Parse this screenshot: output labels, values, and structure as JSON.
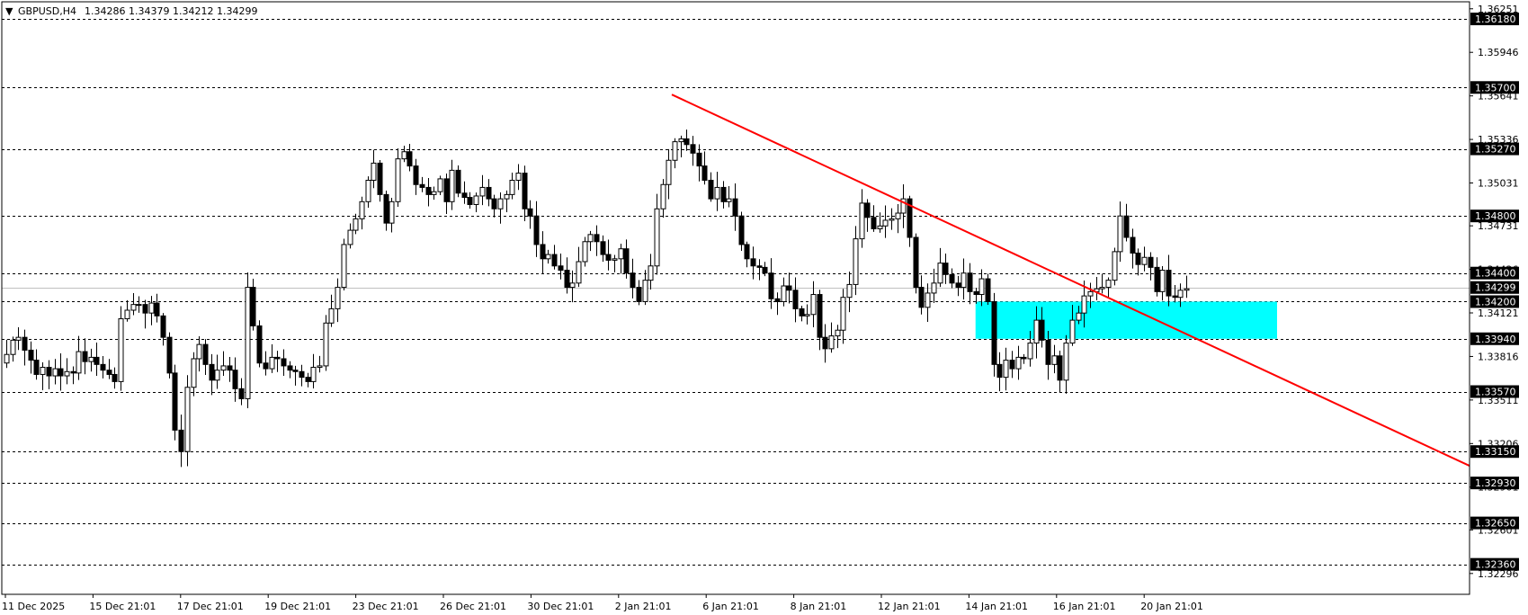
{
  "header": {
    "arrow": "▼",
    "symbol": "GBPUSD,H4",
    "ohlc": "1.34286 1.34379 1.34212 1.34299"
  },
  "colors": {
    "background": "#ffffff",
    "bull_candle_fill": "#ffffff",
    "bear_candle_fill": "#000000",
    "candle_outline": "#000000",
    "trendline": "#ff0000",
    "zone": "#00ffff",
    "level_line": "#000000",
    "current_price_line": "#c0c0c0"
  },
  "chart_data": {
    "type": "candlestick",
    "symbol": "GBPUSD",
    "timeframe": "H4",
    "ylim": [
      1.3215,
      1.363
    ],
    "price_axis_ticks": [
      "1.36251",
      "1.35946",
      "1.35641",
      "1.35336",
      "1.35031",
      "1.34731",
      "1.34426",
      "1.34121",
      "1.33816",
      "1.33511",
      "1.33206",
      "1.32901",
      "1.32601",
      "1.32296"
    ],
    "time_axis_labels": [
      "11 Dec 2025",
      "15 Dec 21:01",
      "17 Dec 21:01",
      "19 Dec 21:01",
      "23 Dec 21:01",
      "26 Dec 21:01",
      "30 Dec 21:01",
      "2 Jan 21:01",
      "6 Jan 21:01",
      "8 Jan 21:01",
      "12 Jan 21:01",
      "14 Jan 21:01",
      "16 Jan 21:01",
      "20 Jan 21:01"
    ],
    "levels": [
      "1.36180",
      "1.35700",
      "1.35270",
      "1.34800",
      "1.34400",
      "1.34200",
      "1.33940",
      "1.33570",
      "1.33150",
      "1.32930",
      "1.32650",
      "1.32360"
    ],
    "current_price": "1.34299",
    "trendline": {
      "from": 1.3565,
      "to": 1.3305
    },
    "zone": {
      "top": 1.342,
      "bottom": 1.3394
    },
    "closes": [
      1.3383,
      1.3393,
      1.3395,
      1.3386,
      1.3379,
      1.3369,
      1.3374,
      1.3368,
      1.3373,
      1.3368,
      1.3371,
      1.337,
      1.3385,
      1.3378,
      1.3381,
      1.3376,
      1.3372,
      1.3369,
      1.3364,
      1.3408,
      1.3414,
      1.3418,
      1.3418,
      1.3412,
      1.3419,
      1.341,
      1.3395,
      1.337,
      1.333,
      1.3315,
      1.336,
      1.338,
      1.339,
      1.3376,
      1.3365,
      1.3372,
      1.3375,
      1.3372,
      1.3359,
      1.3352,
      1.343,
      1.3403,
      1.3377,
      1.3373,
      1.3381,
      1.338,
      1.3375,
      1.3372,
      1.3371,
      1.3367,
      1.3364,
      1.3374,
      1.3375,
      1.3405,
      1.3415,
      1.343,
      1.346,
      1.347,
      1.3478,
      1.349,
      1.3505,
      1.3517,
      1.3495,
      1.3475,
      1.349,
      1.352,
      1.3525,
      1.3515,
      1.3502,
      1.35,
      1.3495,
      1.3497,
      1.3506,
      1.349,
      1.3512,
      1.3496,
      1.3493,
      1.3488,
      1.3494,
      1.35,
      1.3492,
      1.3485,
      1.3492,
      1.3495,
      1.3505,
      1.351,
      1.3485,
      1.348,
      1.346,
      1.345,
      1.3453,
      1.3445,
      1.3442,
      1.343,
      1.3433,
      1.3448,
      1.3462,
      1.3467,
      1.3462,
      1.3453,
      1.3449,
      1.345,
      1.3457,
      1.344,
      1.343,
      1.342,
      1.3435,
      1.3445,
      1.3485,
      1.3502,
      1.3519,
      1.3532,
      1.3534,
      1.353,
      1.3524,
      1.3515,
      1.3505,
      1.3492,
      1.35,
      1.349,
      1.3492,
      1.348,
      1.346,
      1.345,
      1.3445,
      1.3444,
      1.344,
      1.3422,
      1.342,
      1.3431,
      1.3428,
      1.3415,
      1.341,
      1.3411,
      1.3425,
      1.3395,
      1.3387,
      1.3396,
      1.34,
      1.3423,
      1.3432,
      1.3464,
      1.3489,
      1.3479,
      1.3471,
      1.3473,
      1.3477,
      1.3478,
      1.3482,
      1.3492,
      1.3465,
      1.343,
      1.3416,
      1.3426,
      1.3433,
      1.3447,
      1.3439,
      1.3433,
      1.343,
      1.344,
      1.3427,
      1.3425,
      1.3436,
      1.342,
      1.3376,
      1.3367,
      1.3379,
      1.3373,
      1.3381,
      1.338,
      1.3391,
      1.3407,
      1.3393,
      1.3376,
      1.3382,
      1.3365,
      1.3391,
      1.3407,
      1.3412,
      1.3424,
      1.3427,
      1.3429,
      1.343,
      1.3435,
      1.3455,
      1.348,
      1.3465,
      1.3454,
      1.3446,
      1.3451,
      1.3444,
      1.3427,
      1.3442,
      1.3424,
      1.3423,
      1.3428,
      1.3429
    ]
  }
}
